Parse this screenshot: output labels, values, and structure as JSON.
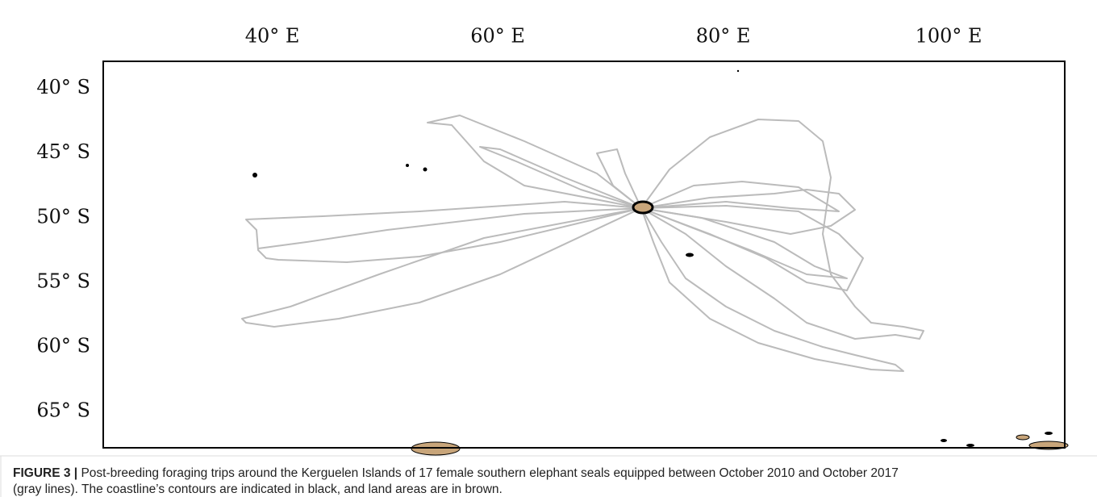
{
  "chart_data": {
    "type": "map",
    "xlim": [
      25,
      110.3
    ],
    "ylim": [
      -67.8,
      -37.9
    ],
    "xticks": [
      {
        "value": 40,
        "label": "40° E"
      },
      {
        "value": 60,
        "label": "60° E"
      },
      {
        "value": 80,
        "label": "80° E"
      },
      {
        "value": 100,
        "label": "100° E"
      }
    ],
    "yticks": [
      {
        "value": -40,
        "label": "40° S"
      },
      {
        "value": -45,
        "label": "45° S"
      },
      {
        "value": -50,
        "label": "50° S"
      },
      {
        "value": -55,
        "label": "55° S"
      },
      {
        "value": -60,
        "label": "60° S"
      },
      {
        "value": -65,
        "label": "65° S"
      }
    ],
    "caption": {
      "label": "FIGURE 3 |",
      "text_line1": "Post-breeding foraging trips around the Kerguelen Islands of 17 female southern elephant seals equipped between October 2010 and October 2017",
      "text_line2": "(gray lines). The coastline’s contours are indicated in black, and land areas are in brown."
    }
  }
}
